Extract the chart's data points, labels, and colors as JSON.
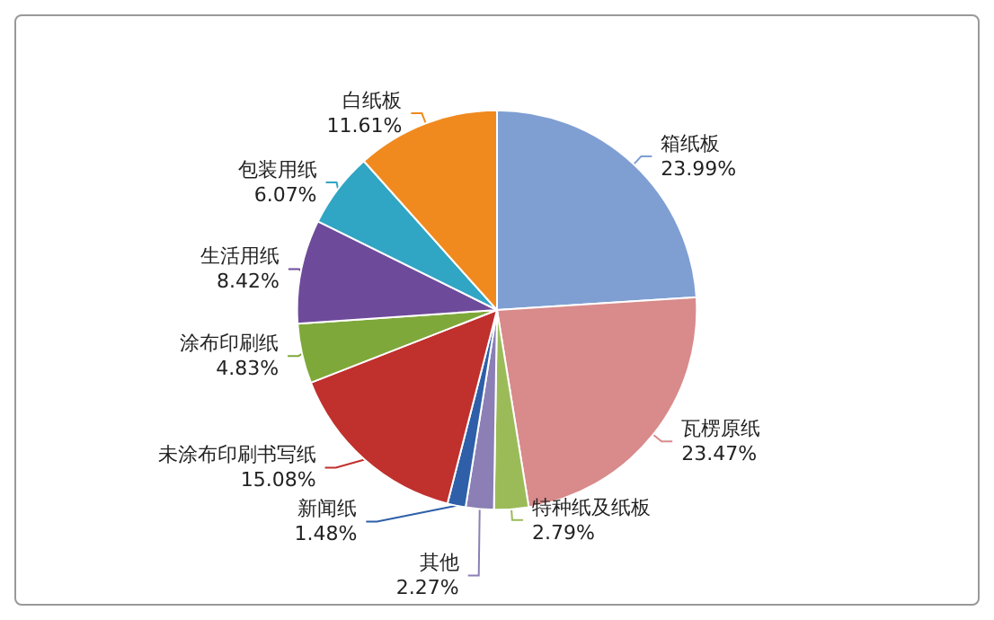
{
  "chart_data": {
    "type": "pie",
    "categories": [
      "箱纸板",
      "瓦楞原纸",
      "特种纸及纸板",
      "其他",
      "新闻纸",
      "未涂布印刷书写纸",
      "涂布印刷纸",
      "生活用纸",
      "包装用纸",
      "白纸板"
    ],
    "values": [
      23.99,
      23.47,
      2.79,
      2.27,
      1.48,
      15.08,
      4.83,
      8.42,
      6.07,
      11.61
    ],
    "value_labels": [
      "23.99%",
      "23.47%",
      "2.79%",
      "2.27%",
      "1.48%",
      "15.08%",
      "4.83%",
      "8.42%",
      "6.07%",
      "11.61%"
    ],
    "colors": [
      "#7f9fd3",
      "#d98a8a",
      "#9bbb59",
      "#8b7fb5",
      "#2e5fa8",
      "#c0302d",
      "#7ea83a",
      "#6e4a9a",
      "#31a5c4",
      "#f08a1e"
    ],
    "legend": false
  }
}
